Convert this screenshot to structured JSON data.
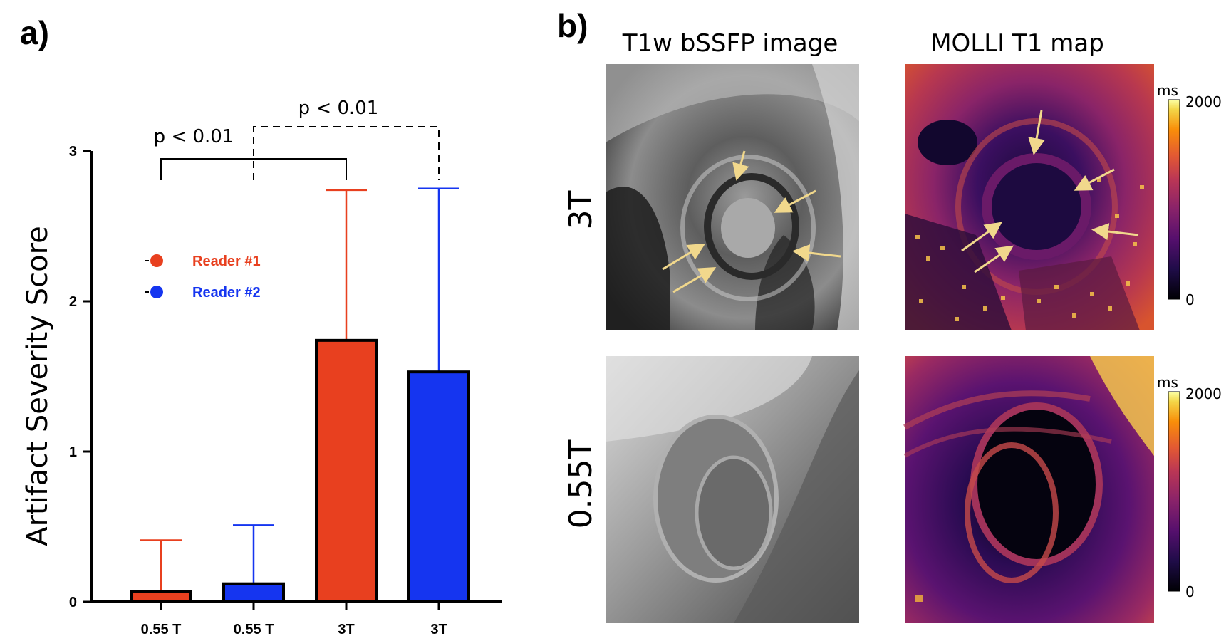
{
  "panel_a": {
    "letter": "a)"
  },
  "panel_b": {
    "letter": "b)",
    "columns": [
      "T1w bSSFP image",
      "MOLLI T1 map"
    ],
    "rows": [
      "3T",
      "0.55T"
    ],
    "colorbar": {
      "unit": "ms",
      "max_label": "2000",
      "min_label": "0"
    }
  },
  "significance": [
    {
      "label": "p < 0.01",
      "style": "solid",
      "from": 0,
      "to": 2
    },
    {
      "label": "p < 0.01",
      "style": "dashed",
      "from": 1,
      "to": 3
    }
  ],
  "chart_data": {
    "type": "bar",
    "ylabel": "Artifact Severity Score",
    "ylim": [
      0,
      3
    ],
    "yticks": [
      0,
      1,
      2,
      3
    ],
    "categories": [
      "0.55 T",
      "0.55 T",
      "3T",
      "3T"
    ],
    "bars": [
      {
        "category": "0.55 T",
        "series": "Reader #1",
        "value": 0.07,
        "error_upper": 0.41
      },
      {
        "category": "0.55 T",
        "series": "Reader #2",
        "value": 0.12,
        "error_upper": 0.51
      },
      {
        "category": "3T",
        "series": "Reader #1",
        "value": 1.74,
        "error_upper": 2.74
      },
      {
        "category": "3T",
        "series": "Reader #2",
        "value": 1.53,
        "error_upper": 2.75
      }
    ],
    "series": [
      {
        "name": "Reader #1",
        "color": "#e8401f"
      },
      {
        "name": "Reader #2",
        "color": "#1535f0"
      }
    ],
    "legend_position": "upper-left"
  }
}
